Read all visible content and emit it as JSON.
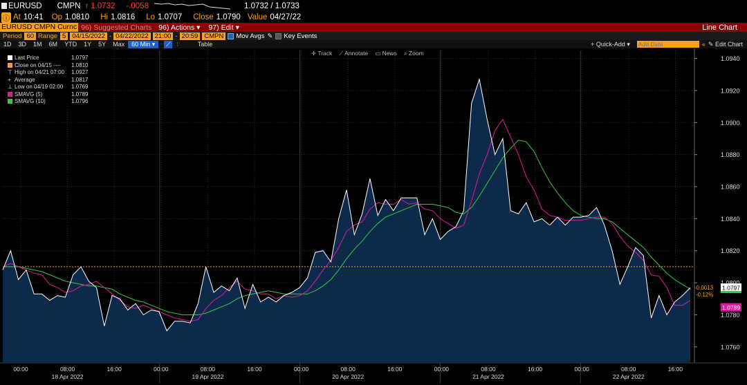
{
  "header": {
    "ticker": "EURUSD",
    "source": "CMPN",
    "last": "1.0732",
    "change": "-.0058",
    "bid_ask": "1.0732 / 1.0733",
    "at_label": "At",
    "at_time": "10:41",
    "open_label": "Op",
    "open": "1.0810",
    "high_label": "Hi",
    "high": "1.0816",
    "low_label": "Lo",
    "low": "1.0707",
    "close_label": "Close",
    "close": "1.0790",
    "value_label": "Value",
    "value_date": "04/27/22"
  },
  "menubar": {
    "security": "EURUSD CMPN Curnc",
    "suggested": "Suggested Charts",
    "suggested_num": "96",
    "actions_num": "96",
    "actions": "Actions",
    "edit_num": "97",
    "edit": "Edit",
    "chart_type": "Line Chart"
  },
  "settings": {
    "period_label": "Period",
    "period_value": "60",
    "range_label": "Range",
    "range_num": "5",
    "start_date": "04/15/2022",
    "end_date": "04/22/2022",
    "start_time": "21:00",
    "end_time": "20:59",
    "source": "CMPN",
    "mov_avgs": "Mov Avgs",
    "key_events": "Key Events"
  },
  "toolbar": {
    "ranges": [
      "1D",
      "3D",
      "1M",
      "6M",
      "YTD",
      "1Y",
      "5Y",
      "Max"
    ],
    "interval": "60 Min",
    "table": "Table",
    "quick_add": "+ Quick-Add",
    "add_data_placeholder": "Add Data",
    "edit_chart": "Edit Chart"
  },
  "chart_tools": {
    "track": "Track",
    "annotate": "Annotate",
    "news": "News",
    "zoom": "Zoom"
  },
  "legend": [
    {
      "label": "Last Price",
      "value": "1.0797",
      "color": "#ffffff"
    },
    {
      "label": "Close on 04/15 ----",
      "value": "1.0810",
      "color": "#f8a01c"
    },
    {
      "label": "High on 04/21 07:00",
      "value": "1.0927",
      "color": "#dddddd"
    },
    {
      "label": "Average",
      "value": "1.0817",
      "color": "#dddddd"
    },
    {
      "label": "Low on 04/19 02:00",
      "value": "1.0769",
      "color": "#dddddd"
    },
    {
      "label": "SMAVG (5)",
      "value": "1.0789",
      "color": "#e0189a"
    },
    {
      "label": "SMAVG (10)",
      "value": "1.0796",
      "color": "#2ecc40"
    }
  ],
  "right_labels": {
    "last": "1.0797",
    "chg": "-0.0013",
    "chg_pct": "-0.12%",
    "sma5": "1.0789"
  },
  "colors": {
    "price": "#ffffff",
    "fill": "#0d2a4a",
    "sma5": "#e0189a",
    "sma10": "#2ecc40",
    "ref_line": "#f8a01c",
    "grid": "#2a2a2a"
  },
  "chart_data": {
    "type": "area",
    "y_ticks": [
      "1.0940",
      "1.0920",
      "1.0900",
      "1.0880",
      "1.0860",
      "1.0840",
      "1.0820",
      "1.0800",
      "1.0780",
      "1.0760"
    ],
    "ylim": [
      1.075,
      1.0945
    ],
    "reference_close": 1.081,
    "x_time_labels": [
      "00:00",
      "08:00",
      "16:00",
      "00:00",
      "08:00",
      "16:00",
      "00:00",
      "08:00",
      "16:00",
      "00:00",
      "08:00",
      "16:00",
      "00:00",
      "08:00",
      "16:00"
    ],
    "x_date_labels": [
      "18 Apr 2022",
      "19 Apr 2022",
      "20 Apr 2022",
      "21 Apr 2022",
      "22 Apr 2022"
    ],
    "series": [
      {
        "name": "Last Price",
        "values": [
          1.0808,
          1.082,
          1.0802,
          1.0808,
          1.0793,
          1.0793,
          1.0789,
          1.0792,
          1.0791,
          1.0805,
          1.081,
          1.0801,
          1.0797,
          1.0773,
          1.0792,
          1.079,
          1.0783,
          1.0787,
          1.078,
          1.0783,
          1.0782,
          1.077,
          1.0776,
          1.0776,
          1.0775,
          1.0787,
          1.081,
          1.0794,
          1.0798,
          1.0795,
          1.0803,
          1.0784,
          1.0799,
          1.0788,
          1.0791,
          1.0788,
          1.0792,
          1.0794,
          1.0797,
          1.0803,
          1.0819,
          1.082,
          1.0813,
          1.084,
          1.0858,
          1.083,
          1.0843,
          1.0865,
          1.0842,
          1.0852,
          1.0845,
          1.0853,
          1.0853,
          1.0853,
          1.083,
          1.084,
          1.0827,
          1.0832,
          1.0835,
          1.0845,
          1.0912,
          1.0927,
          1.0902,
          1.088,
          1.089,
          1.0845,
          1.0843,
          1.085,
          1.0838,
          1.084,
          1.0836,
          1.0841,
          1.0836,
          1.0841,
          1.0841,
          1.0842,
          1.0847,
          1.0836,
          1.082,
          1.0799,
          1.081,
          1.0822,
          1.0817,
          1.0778,
          1.0792,
          1.078,
          1.0788,
          1.0792,
          1.0797
        ]
      },
      {
        "name": "SMAVG (5)",
        "values": [
          1.081,
          1.0812,
          1.081,
          1.0808,
          1.0806,
          1.0805,
          1.0799,
          1.0797,
          1.0794,
          1.0795,
          1.0798,
          1.0799,
          1.0801,
          1.0797,
          1.0793,
          1.0789,
          1.0785,
          1.0784,
          1.0786,
          1.0784,
          1.0782,
          1.078,
          1.0778,
          1.0777,
          1.0776,
          1.0777,
          1.0784,
          1.0789,
          1.0792,
          1.0797,
          1.0801,
          1.0796,
          1.0795,
          1.0793,
          1.0793,
          1.079,
          1.0792,
          1.0791,
          1.0792,
          1.0795,
          1.0801,
          1.0808,
          1.0814,
          1.0822,
          1.0832,
          1.0836,
          1.0838,
          1.0846,
          1.085,
          1.0849,
          1.0849,
          1.0852,
          1.0849,
          1.085,
          1.0846,
          1.0845,
          1.084,
          1.0837,
          1.0834,
          1.0836,
          1.0851,
          1.0868,
          1.088,
          1.0895,
          1.0902,
          1.0891,
          1.088,
          1.0866,
          1.0858,
          1.0846,
          1.0842,
          1.0841,
          1.0839,
          1.0839,
          1.0839,
          1.084,
          1.0841,
          1.0841,
          1.0837,
          1.0829,
          1.0823,
          1.0819,
          1.0814,
          1.0805,
          1.0804,
          1.0797,
          1.0786,
          1.0786,
          1.0789
        ]
      },
      {
        "name": "SMAVG (10)",
        "values": [
          1.081,
          1.081,
          1.081,
          1.0809,
          1.0808,
          1.0807,
          1.0805,
          1.0803,
          1.0801,
          1.08,
          1.0799,
          1.0798,
          1.0798,
          1.0797,
          1.0796,
          1.0793,
          1.0791,
          1.0789,
          1.0788,
          1.0786,
          1.0784,
          1.0782,
          1.0781,
          1.078,
          1.078,
          1.078,
          1.0781,
          1.0783,
          1.0785,
          1.0787,
          1.079,
          1.0792,
          1.0793,
          1.0794,
          1.0795,
          1.0794,
          1.0793,
          1.0793,
          1.0793,
          1.0793,
          1.0795,
          1.0798,
          1.0802,
          1.0808,
          1.0815,
          1.0821,
          1.0826,
          1.0832,
          1.0837,
          1.0841,
          1.0843,
          1.0845,
          1.0847,
          1.0849,
          1.0849,
          1.0849,
          1.0848,
          1.0847,
          1.0844,
          1.0843,
          1.0847,
          1.0854,
          1.0862,
          1.087,
          1.0878,
          1.0884,
          1.0889,
          1.0888,
          1.0882,
          1.0872,
          1.0863,
          1.0856,
          1.085,
          1.0845,
          1.0842,
          1.0841,
          1.084,
          1.084,
          1.0838,
          1.0834,
          1.083,
          1.0826,
          1.0822,
          1.0816,
          1.0811,
          1.0806,
          1.0802,
          1.0799,
          1.0796
        ]
      }
    ],
    "grid": true,
    "legend_position": "top-left"
  }
}
